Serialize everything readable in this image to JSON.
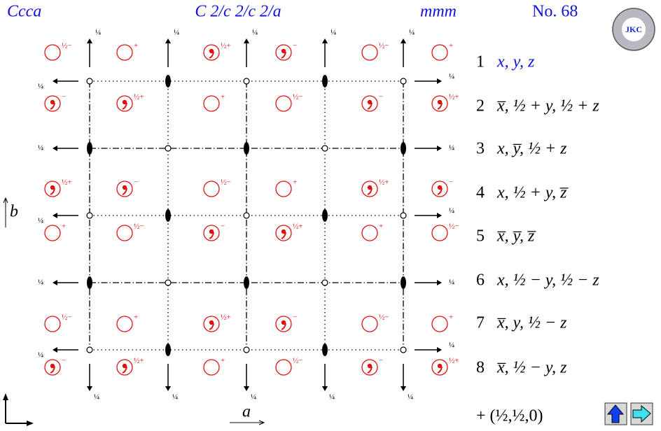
{
  "header": {
    "symbol": "Ccca",
    "full_symbol": "C 2/c 2/c 2/a",
    "point_group": "mmm",
    "number": "No. 68"
  },
  "logo": "JKC",
  "quarter": "¼",
  "axes": {
    "a": "a",
    "b": "b"
  },
  "symbols": [
    [
      {
        "label": "½−",
        "comma": false
      },
      {
        "label": "+",
        "comma": false
      },
      {
        "label": "½+",
        "comma": true
      },
      {
        "label": "−",
        "comma": true
      },
      {
        "label": "½−",
        "comma": false
      },
      {
        "label": "+",
        "comma": false
      }
    ],
    [
      {
        "label": "−",
        "comma": true
      },
      {
        "label": "½+",
        "comma": true
      },
      {
        "label": "+",
        "comma": false
      },
      {
        "label": "½−",
        "comma": false
      },
      {
        "label": "−",
        "comma": true
      },
      {
        "label": "½+",
        "comma": true
      }
    ],
    [
      {
        "label": "½+",
        "comma": true
      },
      {
        "label": "−",
        "comma": true
      },
      {
        "label": "½−",
        "comma": false
      },
      {
        "label": "+",
        "comma": false
      },
      {
        "label": "½+",
        "comma": true
      },
      {
        "label": "−",
        "comma": true
      }
    ],
    [
      {
        "label": "+",
        "comma": false
      },
      {
        "label": "½−",
        "comma": false
      },
      {
        "label": "−",
        "comma": true
      },
      {
        "label": "½+",
        "comma": true
      },
      {
        "label": "+",
        "comma": false
      },
      {
        "label": "½−",
        "comma": false
      }
    ],
    [
      {
        "label": "½−",
        "comma": false
      },
      {
        "label": "+",
        "comma": false
      },
      {
        "label": "½+",
        "comma": true
      },
      {
        "label": "−",
        "comma": true
      },
      {
        "label": "½−",
        "comma": false
      },
      {
        "label": "+",
        "comma": false
      }
    ],
    [
      {
        "label": "−",
        "comma": true
      },
      {
        "label": "½+",
        "comma": true
      },
      {
        "label": "+",
        "comma": false
      },
      {
        "label": "½−",
        "comma": false
      },
      {
        "label": "−",
        "comma": true
      },
      {
        "label": "½+",
        "comma": true
      }
    ]
  ],
  "operations": [
    {
      "number": "1",
      "coords": "x, y, z"
    },
    {
      "number": "2",
      "coords": "x̅, ½ + y, ½ + z"
    },
    {
      "number": "3",
      "coords": "x, y̅, ½ + z"
    },
    {
      "number": "4",
      "coords": "x, ½ + y, z̅"
    },
    {
      "number": "5",
      "coords": "x̅, y̅, z̅"
    },
    {
      "number": "6",
      "coords": "x, ½ − y, ½ − z"
    },
    {
      "number": "7",
      "coords": "x̅, y, ½ − z"
    },
    {
      "number": "8",
      "coords": "x̅, ½ − y, z"
    }
  ],
  "centering": "+ (½,½,0)"
}
